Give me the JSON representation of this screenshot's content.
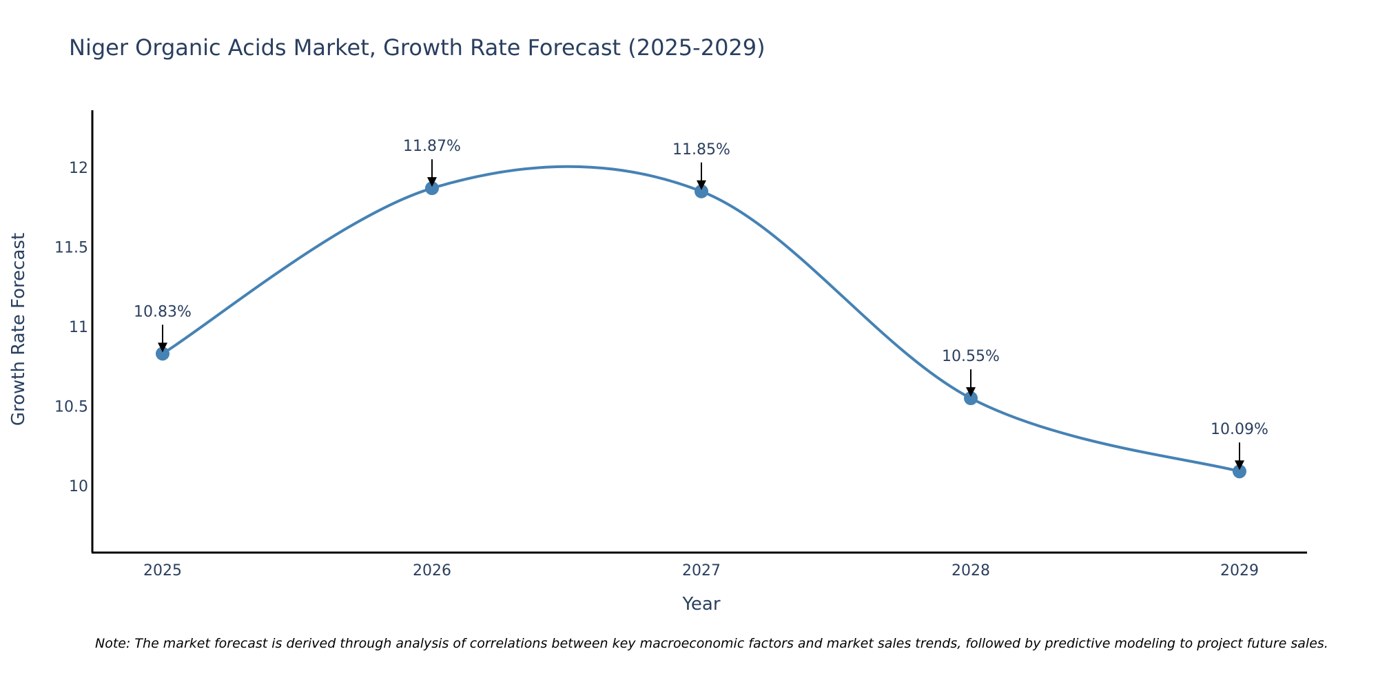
{
  "chart_data": {
    "type": "line",
    "title": "Niger Organic Acids Market, Growth Rate Forecast (2025-2029)",
    "xlabel": "Year",
    "ylabel": "Growth Rate Forecast",
    "categories": [
      "2025",
      "2026",
      "2027",
      "2028",
      "2029"
    ],
    "values": [
      10.83,
      11.87,
      11.85,
      10.55,
      10.09
    ],
    "data_labels": [
      "10.83%",
      "11.87%",
      "11.85%",
      "10.55%",
      "10.09%"
    ],
    "yticks": [
      10,
      10.5,
      11,
      11.5,
      12
    ],
    "ytick_labels": [
      "10",
      "10.5",
      "11",
      "11.5",
      "12"
    ],
    "ylim": [
      9.58,
      12.36
    ],
    "line_color": "#4682b4",
    "marker_color": "#4682b4",
    "smoothing": "spline",
    "grid": false,
    "note": "Note: The market forecast is derived through analysis of correlations between key macroeconomic factors and market sales trends, followed by predictive modeling to project future sales."
  }
}
